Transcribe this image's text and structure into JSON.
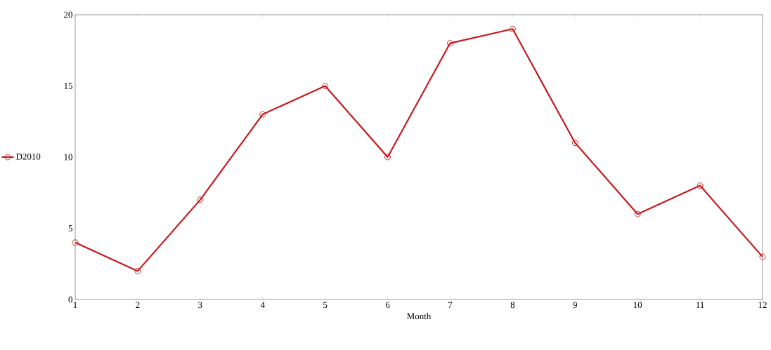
{
  "chart_data": {
    "type": "line",
    "xlabel": "Month",
    "x": [
      1,
      2,
      3,
      4,
      5,
      6,
      7,
      8,
      9,
      10,
      11,
      12
    ],
    "series": [
      {
        "name": "D2010",
        "color": "#c8181c",
        "values": [
          4,
          2,
          7,
          13,
          15,
          10,
          18,
          19,
          11,
          6,
          8,
          3
        ]
      }
    ],
    "xlim": [
      1,
      12
    ],
    "xticks": [
      1,
      2,
      3,
      4,
      5,
      6,
      7,
      8,
      9,
      10,
      11,
      12
    ],
    "ylim": [
      0,
      20
    ],
    "yticks": [
      0,
      5,
      10,
      15,
      20
    ],
    "grid": false,
    "legend": "left",
    "marker": "circle",
    "line_style": "solid"
  }
}
